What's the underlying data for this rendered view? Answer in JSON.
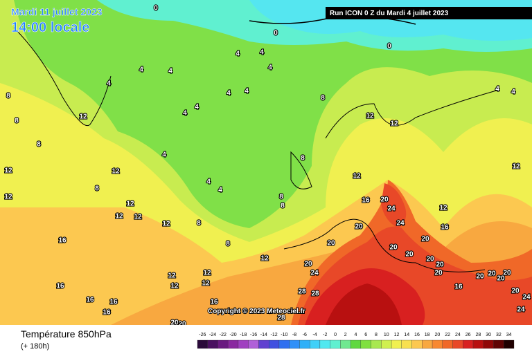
{
  "header": {
    "date": "Mardi 11 juillet 2023",
    "time": "14:00 locale",
    "run": "Run ICON 0 Z du Mardi 4 juillet 2023"
  },
  "copyright": "Copyright © 2023 Meteociel.fr",
  "legend": {
    "title": "Température 850hPa",
    "subtitle": "(+ 180h)",
    "ticks": [
      -26,
      -24,
      -22,
      -20,
      -18,
      -16,
      -14,
      -12,
      -10,
      -8,
      -6,
      -4,
      -2,
      0,
      2,
      4,
      6,
      8,
      10,
      12,
      14,
      16,
      18,
      20,
      22,
      24,
      26,
      28,
      30,
      32,
      34
    ],
    "colors": [
      "#2a0a3a",
      "#4a1060",
      "#6a1a80",
      "#8a28a0",
      "#a040c0",
      "#b060d8",
      "#6040d0",
      "#4050e0",
      "#3070f0",
      "#3090f8",
      "#30b0f8",
      "#40d0f8",
      "#50e8f0",
      "#60f0d0",
      "#70e890",
      "#60d840",
      "#80e040",
      "#a8e850",
      "#d0f050",
      "#f0f050",
      "#f8e050",
      "#fcc850",
      "#f8a840",
      "#f88830",
      "#f06828",
      "#e84828",
      "#d82020",
      "#b81010",
      "#900808",
      "#600404",
      "#200000"
    ]
  },
  "contour_labels": [
    0,
    0,
    0,
    4,
    4,
    4,
    4,
    4,
    4,
    4,
    4,
    4,
    4,
    4,
    4,
    4,
    4,
    4,
    8,
    8,
    8,
    8,
    8,
    8,
    8,
    8,
    8,
    8,
    12,
    12,
    12,
    12,
    12,
    12,
    12,
    12,
    12,
    12,
    12,
    12,
    12,
    12,
    12,
    12,
    12,
    12,
    16,
    16,
    16,
    16,
    16,
    16,
    16,
    16,
    16,
    20,
    20,
    20,
    20,
    20,
    20,
    20,
    20,
    20,
    20,
    20,
    20,
    20,
    20,
    20,
    24,
    24,
    24,
    24,
    24,
    28,
    28,
    28,
    20,
    20
  ]
}
